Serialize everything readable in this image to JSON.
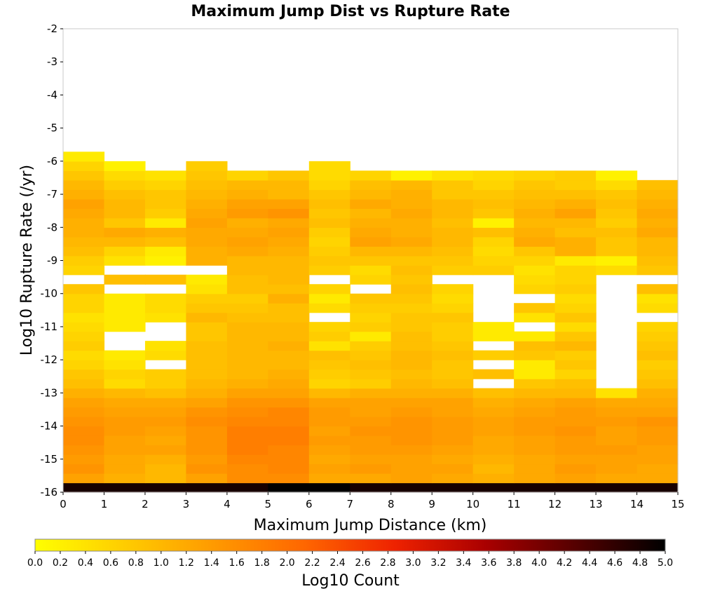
{
  "chart_data": {
    "type": "heatmap",
    "title": "Maximum Jump Dist vs Rupture Rate",
    "xlabel": "Maximum Jump Distance (km)",
    "ylabel": "Log10 Rupture Rate (/yr)",
    "xlim": [
      0,
      15
    ],
    "ylim": [
      -16,
      -2
    ],
    "xticks": [
      "0",
      "1",
      "2",
      "3",
      "4",
      "5",
      "6",
      "7",
      "8",
      "9",
      "10",
      "11",
      "12",
      "13",
      "14",
      "15"
    ],
    "yticks": [
      "-2",
      "-3",
      "-4",
      "-5",
      "-6",
      "-7",
      "-8",
      "-9",
      "-10",
      "-11",
      "-12",
      "-13",
      "-14",
      "-15",
      "-16"
    ],
    "x_bin_width_km": 1,
    "y_bin_width_log10": 0.2857,
    "colorbar": {
      "label": "Log10 Count",
      "range": [
        0,
        5
      ],
      "ticks": [
        "0.0",
        "0.2",
        "0.4",
        "0.6",
        "0.8",
        "1.0",
        "1.2",
        "1.4",
        "1.6",
        "1.8",
        "2.0",
        "2.2",
        "2.4",
        "2.6",
        "2.8",
        "3.0",
        "3.2",
        "3.4",
        "3.6",
        "3.8",
        "4.0",
        "4.2",
        "4.4",
        "4.6",
        "4.8",
        "5.0"
      ],
      "colors": [
        "#ffff00",
        "#ffcc00",
        "#ff9900",
        "#ff6600",
        "#ee2200",
        "#aa0000",
        "#550000",
        "#000000"
      ]
    },
    "values_note": "rows ordered from y=-16 upward in bins of 2/7 log10 units; null = empty bin",
    "values": [
      [
        4.8,
        4.8,
        4.8,
        4.8,
        4.8,
        5.0,
        5.0,
        4.8,
        4.8,
        4.8,
        4.8,
        4.8,
        4.8,
        4.8,
        4.8
      ],
      [
        1.3,
        1.1,
        1.0,
        1.3,
        1.6,
        1.6,
        1.2,
        1.2,
        1.3,
        1.2,
        1.1,
        1.2,
        1.3,
        1.2,
        1.2
      ],
      [
        1.5,
        1.2,
        1.0,
        1.5,
        1.6,
        1.7,
        1.3,
        1.4,
        1.3,
        1.3,
        1.0,
        1.2,
        1.4,
        1.3,
        1.2
      ],
      [
        1.4,
        1.2,
        1.1,
        1.4,
        1.7,
        1.7,
        1.2,
        1.3,
        1.3,
        1.2,
        1.1,
        1.2,
        1.3,
        1.3,
        1.3
      ],
      [
        1.5,
        1.3,
        1.3,
        1.5,
        1.8,
        1.7,
        1.3,
        1.4,
        1.4,
        1.3,
        1.2,
        1.3,
        1.4,
        1.4,
        1.3
      ],
      [
        1.6,
        1.3,
        1.2,
        1.5,
        1.8,
        1.8,
        1.4,
        1.4,
        1.5,
        1.4,
        1.2,
        1.3,
        1.4,
        1.3,
        1.4
      ],
      [
        1.6,
        1.4,
        1.3,
        1.5,
        1.8,
        1.8,
        1.3,
        1.5,
        1.5,
        1.4,
        1.3,
        1.4,
        1.5,
        1.3,
        1.4
      ],
      [
        1.5,
        1.4,
        1.4,
        1.6,
        1.7,
        1.7,
        1.4,
        1.4,
        1.5,
        1.4,
        1.3,
        1.4,
        1.4,
        1.4,
        1.5
      ],
      [
        1.4,
        1.3,
        1.3,
        1.5,
        1.6,
        1.7,
        1.4,
        1.3,
        1.4,
        1.3,
        1.2,
        1.3,
        1.4,
        1.3,
        1.3
      ],
      [
        1.3,
        1.2,
        1.2,
        1.3,
        1.5,
        1.5,
        1.3,
        1.3,
        1.3,
        1.3,
        1.1,
        1.2,
        1.3,
        1.2,
        1.2
      ],
      [
        1.1,
        1.0,
        0.9,
        1.1,
        1.3,
        1.3,
        1.0,
        1.1,
        1.1,
        1.1,
        0.9,
        1.0,
        1.0,
        0.4,
        1.1
      ],
      [
        0.9,
        0.5,
        0.7,
        1.0,
        1.1,
        1.2,
        0.6,
        0.7,
        1.0,
        0.9,
        null,
        0.8,
        0.9,
        null,
        0.9
      ],
      [
        0.8,
        0.6,
        0.7,
        0.9,
        1.0,
        1.1,
        0.7,
        0.8,
        0.9,
        0.8,
        0.9,
        0.3,
        0.6,
        null,
        0.8
      ],
      [
        0.6,
        0.4,
        null,
        0.9,
        1.0,
        1.0,
        0.8,
        0.9,
        1.0,
        0.8,
        null,
        0.3,
        0.8,
        null,
        0.7
      ],
      [
        0.5,
        0.3,
        0.5,
        0.9,
        1.0,
        1.0,
        0.9,
        0.8,
        1.0,
        0.9,
        0.7,
        0.8,
        0.7,
        null,
        0.9
      ],
      [
        0.7,
        null,
        0.4,
        0.9,
        1.0,
        1.1,
        0.4,
        0.7,
        0.9,
        0.8,
        null,
        0.9,
        1.0,
        null,
        0.8
      ],
      [
        0.6,
        null,
        null,
        0.8,
        1.0,
        1.0,
        0.7,
        0.3,
        0.9,
        0.7,
        0.3,
        0.3,
        0.8,
        null,
        0.7
      ],
      [
        0.5,
        0.3,
        null,
        0.8,
        1.0,
        1.0,
        0.6,
        0.7,
        0.8,
        0.7,
        0.3,
        null,
        0.5,
        null,
        0.6
      ],
      [
        0.4,
        0.3,
        0.4,
        1.0,
        0.9,
        0.9,
        null,
        0.6,
        0.8,
        0.8,
        null,
        0.4,
        0.8,
        null,
        null
      ],
      [
        0.6,
        0.3,
        0.5,
        0.8,
        0.8,
        0.9,
        0.5,
        0.7,
        0.7,
        0.6,
        null,
        0.8,
        0.6,
        null,
        0.5
      ],
      [
        0.6,
        0.3,
        0.5,
        0.7,
        0.7,
        1.1,
        0.3,
        0.8,
        0.8,
        0.5,
        null,
        null,
        0.5,
        null,
        0.4
      ],
      [
        0.8,
        null,
        null,
        0.4,
        0.9,
        0.9,
        0.6,
        null,
        0.9,
        0.6,
        null,
        0.6,
        0.7,
        null,
        0.9
      ],
      [
        null,
        0.9,
        0.9,
        0.3,
        0.9,
        1.0,
        null,
        0.6,
        0.8,
        null,
        null,
        0.5,
        0.6,
        null,
        null
      ],
      [
        0.6,
        null,
        null,
        null,
        1.0,
        1.0,
        0.7,
        0.5,
        0.9,
        0.7,
        0.7,
        0.4,
        0.6,
        0.5,
        0.8
      ],
      [
        0.7,
        0.4,
        0.2,
        1.1,
        1.0,
        1.0,
        0.8,
        0.8,
        0.8,
        0.8,
        0.6,
        0.6,
        0.3,
        0.2,
        0.9
      ],
      [
        0.9,
        0.6,
        0.3,
        1.1,
        1.2,
        1.1,
        0.7,
        1.0,
        1.0,
        0.9,
        0.5,
        0.8,
        1.1,
        0.8,
        1.0
      ],
      [
        1.0,
        1.0,
        0.9,
        1.2,
        1.3,
        1.2,
        0.6,
        1.3,
        1.2,
        1.0,
        0.6,
        1.2,
        1.1,
        0.8,
        1.0
      ],
      [
        1.1,
        1.2,
        1.1,
        1.2,
        1.2,
        1.3,
        0.7,
        1.2,
        1.1,
        1.0,
        0.9,
        1.1,
        0.9,
        0.9,
        1.2
      ],
      [
        1.1,
        0.8,
        0.3,
        1.3,
        1.1,
        1.2,
        0.9,
        1.1,
        1.1,
        0.9,
        0.2,
        1.0,
        1.0,
        0.7,
        1.1
      ],
      [
        1.2,
        1.0,
        0.7,
        1.2,
        1.4,
        1.5,
        0.8,
        1.0,
        1.2,
        1.0,
        0.8,
        1.1,
        1.3,
        0.8,
        1.2
      ],
      [
        1.3,
        1.0,
        0.8,
        1.1,
        1.3,
        1.3,
        0.9,
        1.2,
        1.1,
        1.0,
        0.9,
        1.0,
        1.1,
        0.9,
        1.1
      ],
      [
        1.1,
        0.9,
        0.8,
        1.0,
        1.1,
        1.0,
        0.8,
        1.0,
        1.1,
        0.8,
        0.8,
        0.9,
        0.9,
        0.8,
        1.0
      ],
      [
        1.0,
        0.7,
        0.6,
        0.9,
        1.0,
        1.0,
        0.6,
        0.9,
        1.0,
        0.8,
        0.6,
        0.8,
        0.7,
        0.5,
        0.9
      ],
      [
        0.8,
        0.5,
        0.4,
        0.8,
        0.6,
        0.8,
        0.5,
        0.6,
        0.2,
        0.4,
        0.5,
        0.6,
        0.7,
        0.2,
        null
      ],
      [
        0.6,
        0.2,
        null,
        0.7,
        null,
        null,
        0.5,
        null,
        null,
        null,
        null,
        null,
        null,
        null,
        null
      ],
      [
        0.3,
        null,
        null,
        null,
        null,
        null,
        null,
        null,
        null,
        null,
        null,
        null,
        null,
        null,
        null
      ],
      [
        null,
        null,
        null,
        null,
        null,
        null,
        null,
        null,
        null,
        null,
        null,
        null,
        null,
        null,
        null
      ],
      [
        null,
        null,
        null,
        null,
        null,
        null,
        null,
        null,
        null,
        null,
        null,
        null,
        null,
        null,
        null
      ],
      [
        null,
        null,
        null,
        null,
        null,
        null,
        null,
        null,
        null,
        null,
        null,
        null,
        null,
        null,
        null
      ],
      [
        null,
        null,
        null,
        null,
        null,
        null,
        null,
        null,
        null,
        null,
        null,
        null,
        null,
        null,
        null
      ],
      [
        null,
        null,
        null,
        null,
        null,
        null,
        null,
        null,
        null,
        null,
        null,
        null,
        null,
        null,
        null
      ],
      [
        null,
        null,
        null,
        null,
        null,
        null,
        null,
        null,
        null,
        null,
        null,
        null,
        null,
        null,
        null
      ],
      [
        null,
        null,
        null,
        null,
        null,
        null,
        null,
        null,
        null,
        null,
        null,
        null,
        null,
        null,
        null
      ],
      [
        null,
        null,
        null,
        null,
        null,
        null,
        null,
        null,
        null,
        null,
        null,
        null,
        null,
        null,
        null
      ],
      [
        null,
        null,
        null,
        null,
        null,
        null,
        null,
        null,
        null,
        null,
        null,
        null,
        null,
        null,
        null
      ],
      [
        null,
        null,
        null,
        null,
        null,
        null,
        null,
        null,
        null,
        null,
        null,
        null,
        null,
        null,
        null
      ],
      [
        null,
        null,
        null,
        null,
        null,
        null,
        null,
        null,
        null,
        null,
        null,
        null,
        null,
        null,
        null
      ],
      [
        null,
        null,
        null,
        null,
        null,
        null,
        null,
        null,
        null,
        null,
        null,
        null,
        null,
        null,
        null
      ],
      [
        null,
        null,
        null,
        null,
        null,
        null,
        null,
        null,
        null,
        null,
        null,
        null,
        null,
        null,
        null
      ]
    ]
  }
}
